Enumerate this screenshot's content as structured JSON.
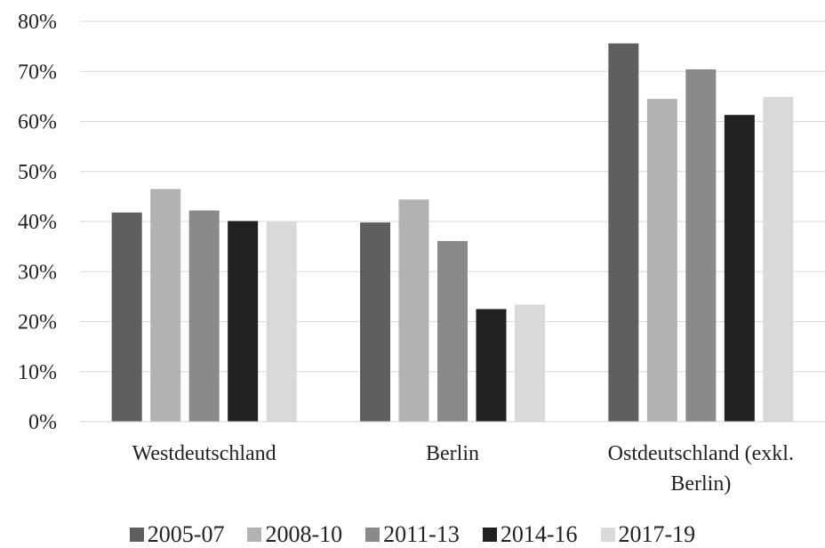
{
  "chart_data": {
    "type": "bar",
    "categories": [
      "Westdeutschland",
      "Berlin",
      "Ostdeutschland (exkl. Berlin)"
    ],
    "category_label_lines": [
      [
        "Westdeutschland"
      ],
      [
        "Berlin"
      ],
      [
        "Ostdeutschland (exkl.",
        "Berlin)"
      ]
    ],
    "series": [
      {
        "name": "2005-07",
        "color": "#5f5f5f",
        "values": [
          41.8,
          39.8,
          75.6
        ]
      },
      {
        "name": "2008-10",
        "color": "#b2b2b2",
        "values": [
          46.5,
          44.4,
          64.5
        ]
      },
      {
        "name": "2011-13",
        "color": "#8a8a8a",
        "values": [
          42.2,
          36.1,
          70.4
        ]
      },
      {
        "name": "2014-16",
        "color": "#212121",
        "values": [
          40.1,
          22.5,
          61.3
        ]
      },
      {
        "name": "2017-19",
        "color": "#d9d9d9",
        "values": [
          40.0,
          23.4,
          64.9
        ]
      }
    ],
    "yticks": [
      "0%",
      "10%",
      "20%",
      "30%",
      "40%",
      "50%",
      "60%",
      "70%",
      "80%"
    ],
    "ylim": [
      0,
      80
    ],
    "grid": true,
    "legend_position": "bottom"
  }
}
